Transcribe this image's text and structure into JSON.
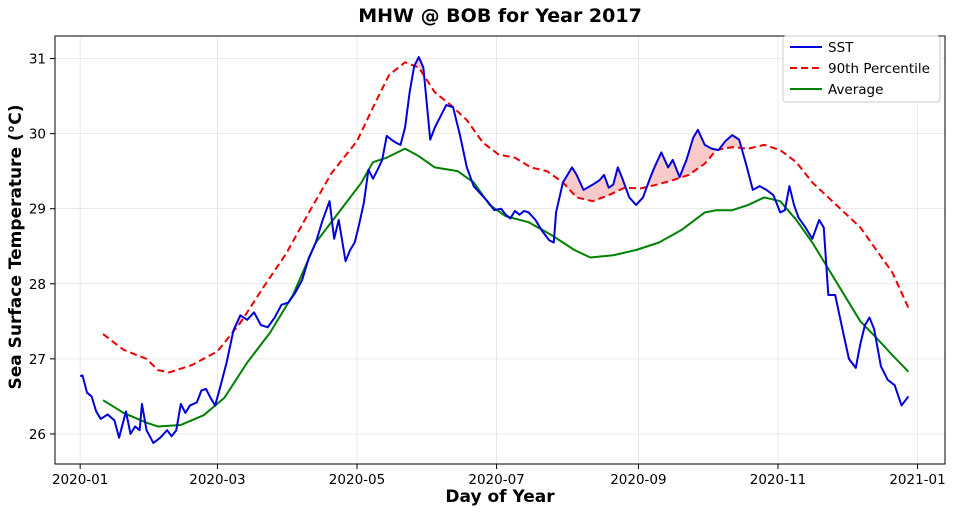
{
  "chart_data": {
    "type": "line",
    "title": "MHW @ BOB for Year 2017",
    "xlabel": "Day of Year",
    "ylabel": "Sea Surface Temperature (°C)",
    "x_axis": "date",
    "xlim": [
      "2019-12-21",
      "2021-01-13"
    ],
    "ylim": [
      25.6,
      31.3
    ],
    "xticks": [
      "2020-01",
      "2020-03",
      "2020-05",
      "2020-07",
      "2020-09",
      "2020-11",
      "2021-01"
    ],
    "yticks": [
      26,
      27,
      28,
      29,
      30,
      31
    ],
    "grid": true,
    "legend": "top-right",
    "series": [
      {
        "name": "SST",
        "color": "#0000dd",
        "style": "solid",
        "points": [
          [
            "2020-01-01",
            26.77
          ],
          [
            "2020-01-02",
            26.78
          ],
          [
            "2020-01-04",
            26.55
          ],
          [
            "2020-01-06",
            26.5
          ],
          [
            "2020-01-08",
            26.3
          ],
          [
            "2020-01-10",
            26.2
          ],
          [
            "2020-01-13",
            26.26
          ],
          [
            "2020-01-16",
            26.18
          ],
          [
            "2020-01-18",
            25.95
          ],
          [
            "2020-01-21",
            26.3
          ],
          [
            "2020-01-23",
            26.0
          ],
          [
            "2020-01-25",
            26.1
          ],
          [
            "2020-01-27",
            26.05
          ],
          [
            "2020-01-28",
            26.4
          ],
          [
            "2020-01-30",
            26.05
          ],
          [
            "2020-02-02",
            25.88
          ],
          [
            "2020-02-05",
            25.95
          ],
          [
            "2020-02-08",
            26.05
          ],
          [
            "2020-02-10",
            25.97
          ],
          [
            "2020-02-12",
            26.05
          ],
          [
            "2020-02-14",
            26.4
          ],
          [
            "2020-02-16",
            26.28
          ],
          [
            "2020-02-18",
            26.38
          ],
          [
            "2020-02-21",
            26.42
          ],
          [
            "2020-02-23",
            26.58
          ],
          [
            "2020-02-25",
            26.6
          ],
          [
            "2020-02-27",
            26.48
          ],
          [
            "2020-02-29",
            26.38
          ],
          [
            "2020-03-02",
            26.6
          ],
          [
            "2020-03-05",
            26.95
          ],
          [
            "2020-03-08",
            27.38
          ],
          [
            "2020-03-11",
            27.58
          ],
          [
            "2020-03-14",
            27.52
          ],
          [
            "2020-03-17",
            27.62
          ],
          [
            "2020-03-20",
            27.45
          ],
          [
            "2020-03-23",
            27.42
          ],
          [
            "2020-03-26",
            27.55
          ],
          [
            "2020-03-29",
            27.72
          ],
          [
            "2020-04-01",
            27.75
          ],
          [
            "2020-04-04",
            27.88
          ],
          [
            "2020-04-07",
            28.05
          ],
          [
            "2020-04-10",
            28.35
          ],
          [
            "2020-04-13",
            28.55
          ],
          [
            "2020-04-16",
            28.85
          ],
          [
            "2020-04-19",
            29.1
          ],
          [
            "2020-04-21",
            28.6
          ],
          [
            "2020-04-23",
            28.85
          ],
          [
            "2020-04-26",
            28.3
          ],
          [
            "2020-04-28",
            28.45
          ],
          [
            "2020-04-30",
            28.55
          ],
          [
            "2020-05-02",
            28.8
          ],
          [
            "2020-05-04",
            29.08
          ],
          [
            "2020-05-06",
            29.52
          ],
          [
            "2020-05-08",
            29.4
          ],
          [
            "2020-05-10",
            29.52
          ],
          [
            "2020-05-12",
            29.65
          ],
          [
            "2020-05-14",
            29.97
          ],
          [
            "2020-05-16",
            29.92
          ],
          [
            "2020-05-18",
            29.88
          ],
          [
            "2020-05-20",
            29.85
          ],
          [
            "2020-05-22",
            30.08
          ],
          [
            "2020-05-24",
            30.55
          ],
          [
            "2020-05-26",
            30.9
          ],
          [
            "2020-05-28",
            31.02
          ],
          [
            "2020-05-30",
            30.88
          ],
          [
            "2020-06-02",
            29.92
          ],
          [
            "2020-06-04",
            30.08
          ],
          [
            "2020-06-06",
            30.2
          ],
          [
            "2020-06-09",
            30.38
          ],
          [
            "2020-06-12",
            30.35
          ],
          [
            "2020-06-15",
            29.98
          ],
          [
            "2020-06-18",
            29.55
          ],
          [
            "2020-06-21",
            29.3
          ],
          [
            "2020-06-24",
            29.2
          ],
          [
            "2020-06-27",
            29.1
          ],
          [
            "2020-06-30",
            28.98
          ],
          [
            "2020-07-03",
            29.0
          ],
          [
            "2020-07-05",
            28.92
          ],
          [
            "2020-07-07",
            28.87
          ],
          [
            "2020-07-09",
            28.97
          ],
          [
            "2020-07-11",
            28.92
          ],
          [
            "2020-07-13",
            28.97
          ],
          [
            "2020-07-15",
            28.95
          ],
          [
            "2020-07-18",
            28.85
          ],
          [
            "2020-07-21",
            28.7
          ],
          [
            "2020-07-24",
            28.58
          ],
          [
            "2020-07-26",
            28.55
          ],
          [
            "2020-07-27",
            28.95
          ],
          [
            "2020-07-30",
            29.35
          ],
          [
            "2020-08-03",
            29.55
          ],
          [
            "2020-08-05",
            29.45
          ],
          [
            "2020-08-08",
            29.25
          ],
          [
            "2020-08-12",
            29.32
          ],
          [
            "2020-08-15",
            29.38
          ],
          [
            "2020-08-17",
            29.45
          ],
          [
            "2020-08-19",
            29.28
          ],
          [
            "2020-08-21",
            29.32
          ],
          [
            "2020-08-23",
            29.55
          ],
          [
            "2020-08-25",
            29.4
          ],
          [
            "2020-08-28",
            29.15
          ],
          [
            "2020-08-31",
            29.05
          ],
          [
            "2020-09-03",
            29.15
          ],
          [
            "2020-09-06",
            29.4
          ],
          [
            "2020-09-08",
            29.55
          ],
          [
            "2020-09-11",
            29.75
          ],
          [
            "2020-09-14",
            29.55
          ],
          [
            "2020-09-16",
            29.65
          ],
          [
            "2020-09-19",
            29.42
          ],
          [
            "2020-09-22",
            29.65
          ],
          [
            "2020-09-25",
            29.95
          ],
          [
            "2020-09-27",
            30.05
          ],
          [
            "2020-09-30",
            29.85
          ],
          [
            "2020-10-03",
            29.8
          ],
          [
            "2020-10-06",
            29.78
          ],
          [
            "2020-10-09",
            29.9
          ],
          [
            "2020-10-12",
            29.98
          ],
          [
            "2020-10-15",
            29.92
          ],
          [
            "2020-10-18",
            29.6
          ],
          [
            "2020-10-21",
            29.25
          ],
          [
            "2020-10-24",
            29.3
          ],
          [
            "2020-10-27",
            29.25
          ],
          [
            "2020-10-30",
            29.18
          ],
          [
            "2020-11-02",
            28.95
          ],
          [
            "2020-11-04",
            28.98
          ],
          [
            "2020-11-06",
            29.3
          ],
          [
            "2020-11-08",
            29.05
          ],
          [
            "2020-11-10",
            28.88
          ],
          [
            "2020-11-13",
            28.75
          ],
          [
            "2020-11-16",
            28.6
          ],
          [
            "2020-11-19",
            28.85
          ],
          [
            "2020-11-21",
            28.75
          ],
          [
            "2020-11-23",
            27.85
          ],
          [
            "2020-11-26",
            27.85
          ],
          [
            "2020-11-29",
            27.42
          ],
          [
            "2020-12-02",
            27.0
          ],
          [
            "2020-12-05",
            26.88
          ],
          [
            "2020-12-07",
            27.2
          ],
          [
            "2020-12-09",
            27.45
          ],
          [
            "2020-12-11",
            27.55
          ],
          [
            "2020-12-13",
            27.4
          ],
          [
            "2020-12-16",
            26.9
          ],
          [
            "2020-12-19",
            26.72
          ],
          [
            "2020-12-22",
            26.65
          ],
          [
            "2020-12-25",
            26.38
          ],
          [
            "2020-12-28",
            26.5
          ]
        ]
      },
      {
        "name": "90th Percentile",
        "color": "#ee0000",
        "style": "dashed",
        "points": [
          [
            "2020-01-11",
            27.33
          ],
          [
            "2020-01-20",
            27.12
          ],
          [
            "2020-01-30",
            27.0
          ],
          [
            "2020-02-04",
            26.85
          ],
          [
            "2020-02-09",
            26.82
          ],
          [
            "2020-02-19",
            26.92
          ],
          [
            "2020-03-01",
            27.1
          ],
          [
            "2020-03-11",
            27.48
          ],
          [
            "2020-03-21",
            27.95
          ],
          [
            "2020-03-31",
            28.4
          ],
          [
            "2020-04-10",
            28.95
          ],
          [
            "2020-04-20",
            29.48
          ],
          [
            "2020-05-01",
            29.9
          ],
          [
            "2020-05-08",
            30.35
          ],
          [
            "2020-05-15",
            30.78
          ],
          [
            "2020-05-22",
            30.95
          ],
          [
            "2020-05-28",
            30.88
          ],
          [
            "2020-06-04",
            30.55
          ],
          [
            "2020-06-11",
            30.38
          ],
          [
            "2020-06-18",
            30.18
          ],
          [
            "2020-06-25",
            29.88
          ],
          [
            "2020-07-02",
            29.72
          ],
          [
            "2020-07-09",
            29.68
          ],
          [
            "2020-07-16",
            29.55
          ],
          [
            "2020-07-23",
            29.5
          ],
          [
            "2020-07-30",
            29.35
          ],
          [
            "2020-08-05",
            29.15
          ],
          [
            "2020-08-12",
            29.1
          ],
          [
            "2020-08-19",
            29.18
          ],
          [
            "2020-08-26",
            29.28
          ],
          [
            "2020-09-02",
            29.27
          ],
          [
            "2020-09-09",
            29.32
          ],
          [
            "2020-09-16",
            29.38
          ],
          [
            "2020-09-23",
            29.45
          ],
          [
            "2020-09-30",
            29.6
          ],
          [
            "2020-10-05",
            29.78
          ],
          [
            "2020-10-12",
            29.82
          ],
          [
            "2020-10-19",
            29.8
          ],
          [
            "2020-10-26",
            29.85
          ],
          [
            "2020-11-02",
            29.78
          ],
          [
            "2020-11-09",
            29.62
          ],
          [
            "2020-11-16",
            29.35
          ],
          [
            "2020-11-23",
            29.15
          ],
          [
            "2020-11-30",
            28.95
          ],
          [
            "2020-12-07",
            28.75
          ],
          [
            "2020-12-14",
            28.45
          ],
          [
            "2020-12-21",
            28.15
          ],
          [
            "2020-12-28",
            27.68
          ]
        ]
      },
      {
        "name": "Average",
        "color": "#008000",
        "style": "solid",
        "points": [
          [
            "2020-01-11",
            26.45
          ],
          [
            "2020-01-20",
            26.28
          ],
          [
            "2020-01-30",
            26.15
          ],
          [
            "2020-02-04",
            26.1
          ],
          [
            "2020-02-14",
            26.12
          ],
          [
            "2020-02-24",
            26.25
          ],
          [
            "2020-03-04",
            26.48
          ],
          [
            "2020-03-14",
            26.95
          ],
          [
            "2020-03-24",
            27.35
          ],
          [
            "2020-04-03",
            27.85
          ],
          [
            "2020-04-13",
            28.55
          ],
          [
            "2020-04-23",
            28.95
          ],
          [
            "2020-05-03",
            29.35
          ],
          [
            "2020-05-08",
            29.62
          ],
          [
            "2020-05-14",
            29.68
          ],
          [
            "2020-05-22",
            29.8
          ],
          [
            "2020-05-28",
            29.7
          ],
          [
            "2020-06-04",
            29.55
          ],
          [
            "2020-06-14",
            29.5
          ],
          [
            "2020-06-21",
            29.35
          ],
          [
            "2020-06-28",
            29.05
          ],
          [
            "2020-07-05",
            28.9
          ],
          [
            "2020-07-15",
            28.82
          ],
          [
            "2020-07-25",
            28.65
          ],
          [
            "2020-08-04",
            28.45
          ],
          [
            "2020-08-11",
            28.35
          ],
          [
            "2020-08-21",
            28.38
          ],
          [
            "2020-08-31",
            28.45
          ],
          [
            "2020-09-10",
            28.55
          ],
          [
            "2020-09-20",
            28.72
          ],
          [
            "2020-09-30",
            28.95
          ],
          [
            "2020-10-05",
            28.98
          ],
          [
            "2020-10-12",
            28.98
          ],
          [
            "2020-10-19",
            29.05
          ],
          [
            "2020-10-26",
            29.15
          ],
          [
            "2020-11-02",
            29.1
          ],
          [
            "2020-11-09",
            28.85
          ],
          [
            "2020-11-16",
            28.55
          ],
          [
            "2020-11-23",
            28.2
          ],
          [
            "2020-11-30",
            27.85
          ],
          [
            "2020-12-07",
            27.5
          ],
          [
            "2020-12-14",
            27.28
          ],
          [
            "2020-12-21",
            27.05
          ],
          [
            "2020-12-28",
            26.83
          ]
        ]
      }
    ],
    "fill_between": {
      "color": "#f4a6a6",
      "opacity": 0.6,
      "description_from": "SST",
      "to": "90th Percentile",
      "where": "SST above 90th Percentile"
    }
  }
}
